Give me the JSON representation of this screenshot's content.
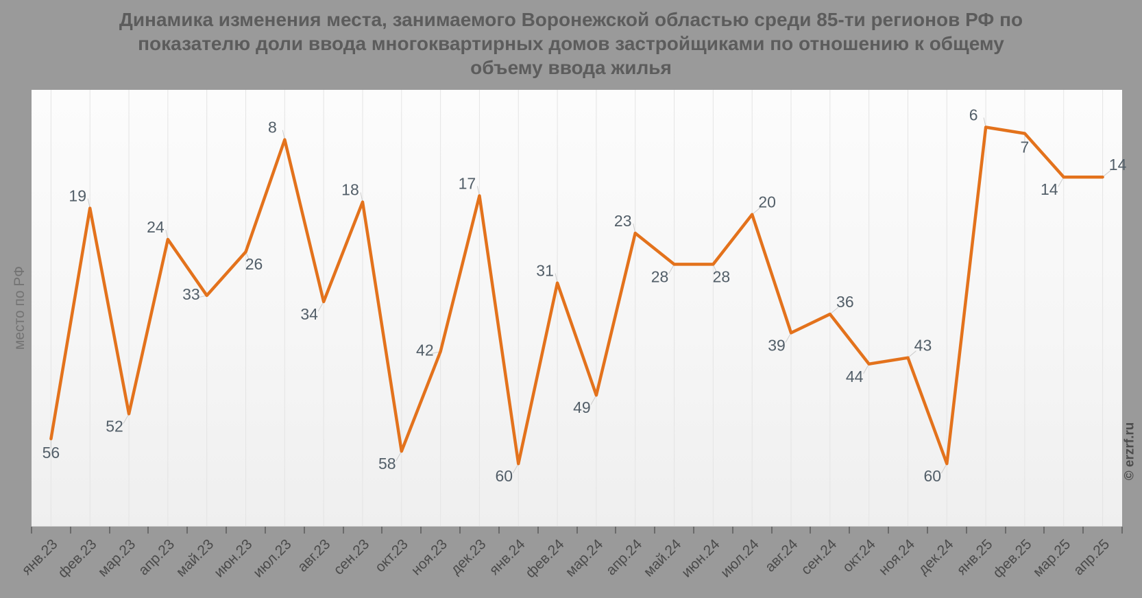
{
  "title_lines": [
    "Динамика изменения места, занимаемого Воронежской областью среди 85-ти регионов РФ по",
    "показателю доли ввода многоквартирных домов застройщиками по отношению к общему",
    "объему ввода жилья"
  ],
  "y_axis_title": "место по РФ",
  "watermark": "© erzrf.ru",
  "colors": {
    "background": "#9a9a9a",
    "plot_bg_top": "#fcfcfc",
    "plot_bg_bottom": "#efefef",
    "grid": "#e4e4e4",
    "line": "#e3721c",
    "data_label": "#525e68",
    "x_label": "#4b4b4b",
    "y_title": "#737373",
    "title": "#5c5c5c",
    "tick": "#6a6a6a",
    "watermark": "#4c4c4c",
    "connector": "#cccccc"
  },
  "chart_data": {
    "type": "line",
    "title": "Динамика изменения места, занимаемого Воронежской областью среди 85-ти регионов РФ по показателю доли ввода многоквартирных домов застройщиками по отношению к общему объему ввода жилья",
    "ylabel": "место по РФ",
    "xlabel": "",
    "categories": [
      "янв.23",
      "фев.23",
      "мар.23",
      "апр.23",
      "май.23",
      "июн.23",
      "июл.23",
      "авг.23",
      "сен.23",
      "окт.23",
      "ноя.23",
      "дек.23",
      "янв.24",
      "фев.24",
      "мар.24",
      "апр.24",
      "май.24",
      "июн.24",
      "июл.24",
      "авг.24",
      "сен.24",
      "окт.24",
      "ноя.24",
      "дек.24",
      "янв.25",
      "фев.25",
      "мар.25",
      "апр.25"
    ],
    "values": [
      56,
      19,
      52,
      24,
      33,
      26,
      8,
      34,
      18,
      58,
      42,
      17,
      60,
      31,
      49,
      23,
      28,
      28,
      20,
      39,
      36,
      44,
      43,
      60,
      6,
      7,
      14,
      14
    ],
    "ylim": [
      0,
      70
    ],
    "y_axis_inverted": true,
    "grid": "vertical",
    "legend": "none",
    "line_color": "#e3721c",
    "label_placements": [
      "below",
      "above",
      "below-left",
      "above",
      "left",
      "below-right",
      "above",
      "below-left",
      "above",
      "below-left",
      "left",
      "above",
      "below-left",
      "above",
      "below-left",
      "above",
      "below-left",
      "below-right",
      "above-right",
      "below-left",
      "above-right",
      "below-left",
      "above-right",
      "below-left",
      "above",
      "below",
      "below-left",
      "above-right"
    ]
  }
}
